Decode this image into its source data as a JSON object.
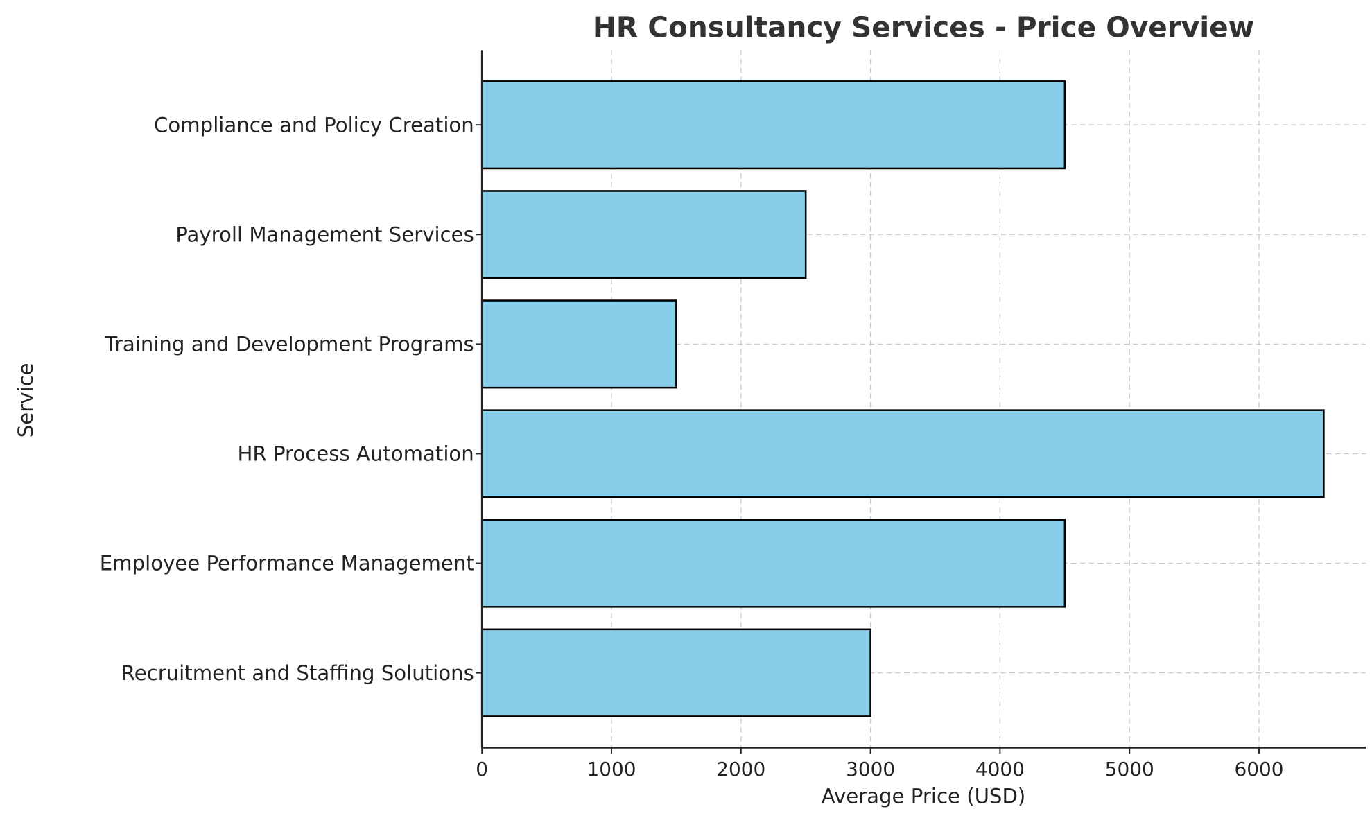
{
  "chart_data": {
    "type": "bar",
    "orientation": "horizontal",
    "title": "HR Consultancy Services - Price Overview",
    "xlabel": "Average Price (USD)",
    "ylabel": "Service",
    "categories": [
      "Recruitment and Staffing Solutions",
      "Employee Performance Management",
      "HR Process Automation",
      "Training and Development Programs",
      "Payroll Management Services",
      "Compliance and Policy Creation"
    ],
    "values": [
      3000,
      4500,
      6500,
      1500,
      2500,
      4500
    ],
    "xlim": [
      0,
      6825
    ],
    "xticks": [
      0,
      1000,
      2000,
      3000,
      4000,
      5000,
      6000
    ],
    "grid": true,
    "bar_color": "#87ceeb",
    "edge_color": "#000000"
  }
}
